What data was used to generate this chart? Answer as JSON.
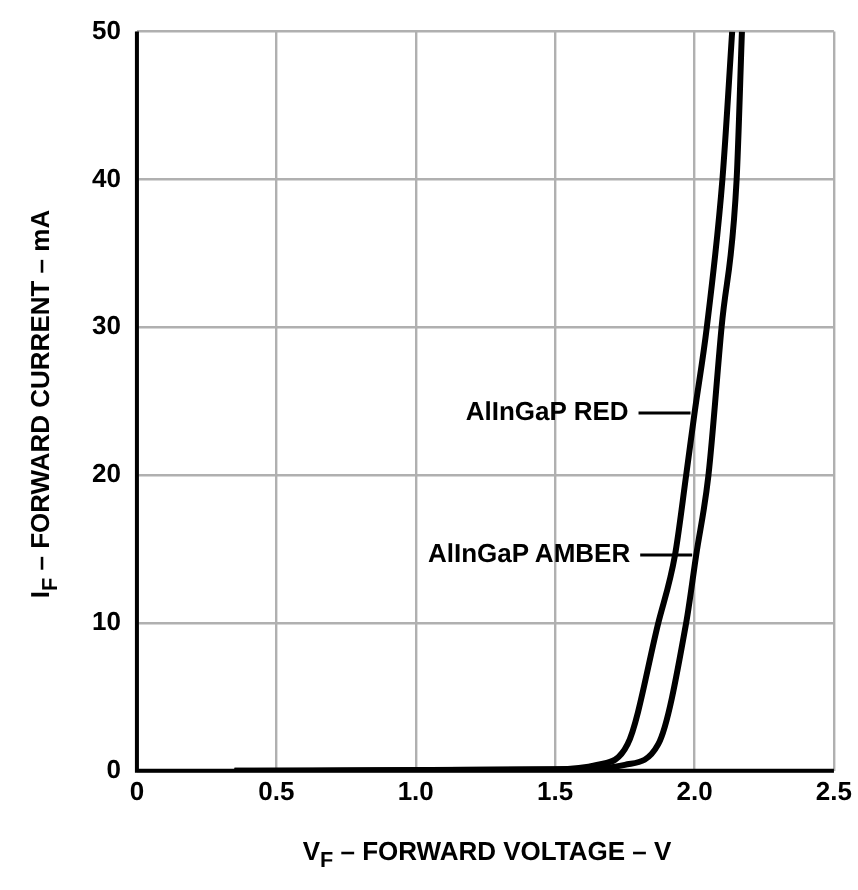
{
  "chart_data": {
    "type": "line",
    "xlabel": "V$_{F}$ – FORWARD VOLTAGE – V",
    "ylabel": "I$_{F}$ – FORWARD CURRENT – mA",
    "xlim": [
      0,
      2.5
    ],
    "xticks": [
      0,
      0.5,
      {
        "value": 1,
        "label": "1.0"
      },
      1.5,
      {
        "value": 2,
        "label": "2.0"
      },
      2.5
    ],
    "ylim": [
      0,
      50
    ],
    "yticks": [
      0,
      10,
      20,
      30,
      40,
      50
    ],
    "grid": true,
    "legend": false,
    "marker": "none",
    "line_style": "solid",
    "series": [
      {
        "color": "#000000",
        "x": [
          0.35,
          1.5,
          1.65,
          1.76,
          1.87,
          1.93,
          1.97,
          2.0,
          2.044,
          2.1,
          2.135
        ],
        "values": [
          0,
          0.1,
          0.4,
          1.8,
          10,
          14.6,
          20,
          24.2,
          30,
          40,
          50
        ]
      },
      {
        "color": "#000000",
        "x": [
          0.35,
          1.6,
          1.75,
          1.87,
          1.97,
          2.006,
          2.05,
          2.097,
          2.151,
          2.17
        ],
        "values": [
          0,
          0.1,
          0.4,
          1.8,
          10,
          14.6,
          20,
          30,
          40,
          50
        ]
      }
    ],
    "annotations": [
      {
        "text": "AlInGaP RED",
        "x": 2.0,
        "y": 24.2
      },
      {
        "text": "AlInGaP AMBER",
        "x": 2.006,
        "y": 14.6
      }
    ]
  }
}
